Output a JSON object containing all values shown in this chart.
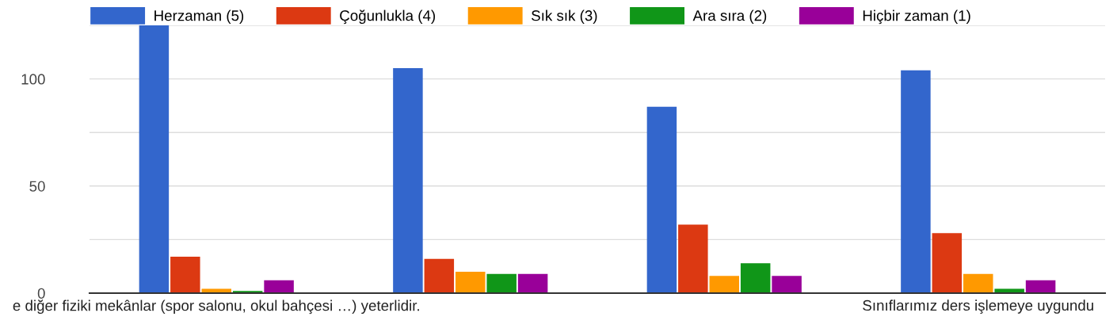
{
  "chart_data": {
    "type": "bar",
    "categories": [
      "e diğer fiziki mekânlar (spor salonu, okul bahçesi …) yeterlidir.",
      null,
      null,
      "Sınıflarımız ders işlemeye uygundu"
    ],
    "series": [
      {
        "name": "Herzaman (5)",
        "color": "#3366cc",
        "values": [
          125,
          105,
          87,
          104
        ]
      },
      {
        "name": "Çoğunlukla (4)",
        "color": "#dc3912",
        "values": [
          17,
          16,
          32,
          28
        ]
      },
      {
        "name": "Sık sık (3)",
        "color": "#ff9900",
        "values": [
          2,
          10,
          8,
          9
        ]
      },
      {
        "name": "Ara sıra (2)",
        "color": "#109618",
        "values": [
          1,
          9,
          14,
          2
        ]
      },
      {
        "name": "Hiçbir zaman (1)",
        "color": "#990099",
        "values": [
          6,
          9,
          8,
          6
        ]
      }
    ],
    "ylim": [
      0,
      125
    ],
    "yticks": [
      0,
      {
        "value": 25,
        "label": null
      },
      50,
      {
        "value": 75,
        "label": null
      },
      100,
      {
        "value": 125,
        "label": null
      }
    ],
    "grid": "y",
    "legend": "top"
  }
}
